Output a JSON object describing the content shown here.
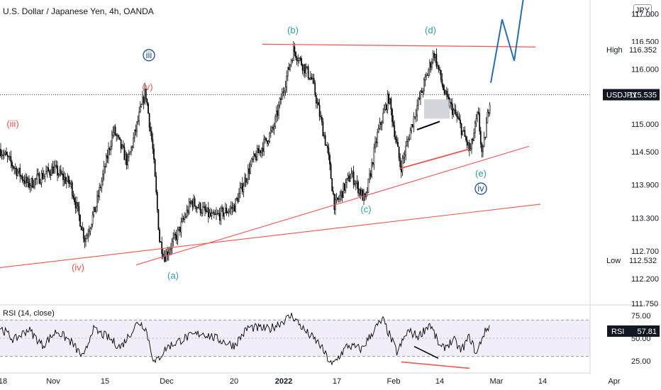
{
  "header": {
    "title": "U.S. Dollar / Japanese Yen, 4h, OANDA",
    "currency": "JPY"
  },
  "chart_data": {
    "type": "line",
    "symbol": "USDJPY",
    "price_axis": {
      "ticks": [
        "117.000",
        "116.500",
        "116.000",
        "115.000",
        "114.500",
        "113.900",
        "113.300",
        "112.700",
        "112.200",
        "111.750"
      ],
      "ylim": [
        111.75,
        117.2
      ]
    },
    "labels": {
      "high_label": "High",
      "high_value": "116.352",
      "low_label": "Low",
      "low_value": "112.532",
      "last_label": "USDJPY",
      "last_value": "115.535",
      "rsi_label": "RSI",
      "rsi_value": "57.81"
    },
    "x_axis": {
      "ticks": [
        "18",
        "Nov",
        "15",
        "Dec",
        "20",
        "2022",
        "17",
        "Feb",
        "14",
        "Mar",
        "14",
        "Apr"
      ]
    },
    "price_anchors": [
      [
        0,
        114.55
      ],
      [
        15,
        114.3
      ],
      [
        40,
        113.9
      ],
      [
        75,
        114.2
      ],
      [
        100,
        113.9
      ],
      [
        120,
        112.9
      ],
      [
        135,
        113.5
      ],
      [
        160,
        114.9
      ],
      [
        180,
        114.3
      ],
      [
        205,
        115.6
      ],
      [
        215,
        114.6
      ],
      [
        225,
        112.9
      ],
      [
        232,
        112.6
      ],
      [
        250,
        113.0
      ],
      [
        270,
        113.6
      ],
      [
        300,
        113.3
      ],
      [
        330,
        113.5
      ],
      [
        355,
        114.3
      ],
      [
        385,
        114.9
      ],
      [
        414,
        116.35
      ],
      [
        440,
        115.8
      ],
      [
        462,
        114.5
      ],
      [
        472,
        113.5
      ],
      [
        495,
        114.1
      ],
      [
        515,
        113.6
      ],
      [
        532,
        114.8
      ],
      [
        548,
        115.5
      ],
      [
        565,
        114.2
      ],
      [
        585,
        115.2
      ],
      [
        612,
        116.3
      ],
      [
        628,
        115.5
      ],
      [
        645,
        115.1
      ],
      [
        663,
        114.5
      ],
      [
        674,
        115.2
      ],
      [
        680,
        114.4
      ],
      [
        692,
        115.6
      ]
    ],
    "projection": [
      [
        692,
        115.75
      ],
      [
        708,
        116.9
      ],
      [
        725,
        116.15
      ],
      [
        745,
        117.9
      ]
    ],
    "resistance": {
      "x": [
        370,
        755
      ],
      "y": [
        116.45,
        116.4
      ]
    },
    "support_lines": [
      {
        "x": [
          0,
          762
        ],
        "y": [
          112.4,
          113.55
        ]
      },
      {
        "x": [
          192,
          746
        ],
        "y": [
          112.45,
          114.6
        ]
      },
      {
        "x": [
          565,
          662
        ],
        "y": [
          114.2,
          114.55
        ]
      }
    ],
    "divergence_price": {
      "x": [
        588,
        620
      ],
      "y": [
        114.9,
        115.05
      ]
    },
    "wave_labels": [
      {
        "text": "(iii)",
        "x": 18,
        "y": 114.95,
        "color": "#ef5350"
      },
      {
        "text": "(iv)",
        "x": 110,
        "y": 112.35,
        "color": "#ef5350"
      },
      {
        "text": "(v)",
        "x": 208,
        "y": 115.62,
        "color": "#ef5350"
      },
      {
        "text": "iii",
        "x": 210,
        "y": 116.2,
        "color": "#1f4e8c",
        "circled": true
      },
      {
        "text": "(a)",
        "x": 244,
        "y": 112.2,
        "color": "#2f9ea3"
      },
      {
        "text": "(b)",
        "x": 413,
        "y": 116.65,
        "color": "#2f9ea3"
      },
      {
        "text": "(c)",
        "x": 516,
        "y": 113.4,
        "color": "#2f9ea3"
      },
      {
        "text": "(d)",
        "x": 607,
        "y": 116.65,
        "color": "#2f9ea3"
      },
      {
        "text": "(e)",
        "x": 678,
        "y": 114.05,
        "color": "#2f9ea3"
      },
      {
        "text": "iv",
        "x": 678,
        "y": 113.78,
        "color": "#1f4e8c",
        "circled": true
      }
    ],
    "rsi": {
      "title": "RSI (14, close)",
      "ticks": [
        "75.00",
        "50.00",
        "25.00"
      ],
      "ylim": [
        15,
        85
      ],
      "bands": [
        70,
        30
      ],
      "anchors": [
        [
          0,
          62
        ],
        [
          20,
          48
        ],
        [
          40,
          60
        ],
        [
          60,
          42
        ],
        [
          80,
          58
        ],
        [
          100,
          46
        ],
        [
          118,
          28
        ],
        [
          130,
          60
        ],
        [
          150,
          52
        ],
        [
          170,
          40
        ],
        [
          195,
          68
        ],
        [
          205,
          62
        ],
        [
          218,
          22
        ],
        [
          235,
          40
        ],
        [
          260,
          50
        ],
        [
          285,
          56
        ],
        [
          310,
          48
        ],
        [
          330,
          42
        ],
        [
          350,
          62
        ],
        [
          380,
          60
        ],
        [
          412,
          75
        ],
        [
          430,
          58
        ],
        [
          450,
          44
        ],
        [
          468,
          20
        ],
        [
          490,
          42
        ],
        [
          510,
          38
        ],
        [
          530,
          62
        ],
        [
          540,
          70
        ],
        [
          560,
          34
        ],
        [
          575,
          58
        ],
        [
          590,
          52
        ],
        [
          606,
          66
        ],
        [
          622,
          38
        ],
        [
          640,
          48
        ],
        [
          650,
          36
        ],
        [
          662,
          52
        ],
        [
          672,
          32
        ],
        [
          680,
          52
        ],
        [
          690,
          64
        ]
      ],
      "divergence_lines": [
        {
          "x": [
            584,
            618
          ],
          "y": [
            41,
            28
          ]
        },
        {
          "x": [
            566,
            662
          ],
          "y": [
            24,
            17
          ]
        }
      ]
    }
  },
  "colors": {
    "bull": "#26a69a",
    "bear": "#ef5350",
    "candle": "#000000",
    "red_lines": "#ef5350",
    "projection": "#2a6db5",
    "rsi_line": "#000000",
    "rsi_band": "#7e57c2"
  }
}
